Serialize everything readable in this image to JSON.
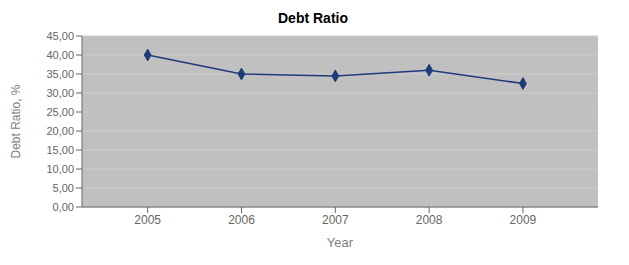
{
  "chart_data": {
    "type": "line",
    "title": "Debt Ratio",
    "xlabel": "Year",
    "ylabel": "Debt Ratio, %",
    "x": [
      2005,
      2006,
      2007,
      2008,
      2009
    ],
    "values": [
      40.0,
      35.0,
      34.5,
      36.0,
      32.5
    ],
    "color": "#1F3A7A",
    "marker": "diamond",
    "xlim": [
      2004.3,
      2009.8
    ],
    "xticks": [
      2005,
      2006,
      2007,
      2008,
      2009
    ],
    "ylim": [
      0,
      45
    ],
    "yticks": [
      {
        "value": 0,
        "label": "0,00"
      },
      {
        "value": 5,
        "label": "5,00"
      },
      {
        "value": 10,
        "label": "10,00"
      },
      {
        "value": 15,
        "label": "15,00"
      },
      {
        "value": 20,
        "label": "20,00"
      },
      {
        "value": 25,
        "label": "25,00"
      },
      {
        "value": 30,
        "label": "30,00"
      },
      {
        "value": 35,
        "label": "35,00"
      },
      {
        "value": 40,
        "label": "40,00"
      },
      {
        "value": 45,
        "label": "45,00"
      }
    ],
    "grid": true
  }
}
